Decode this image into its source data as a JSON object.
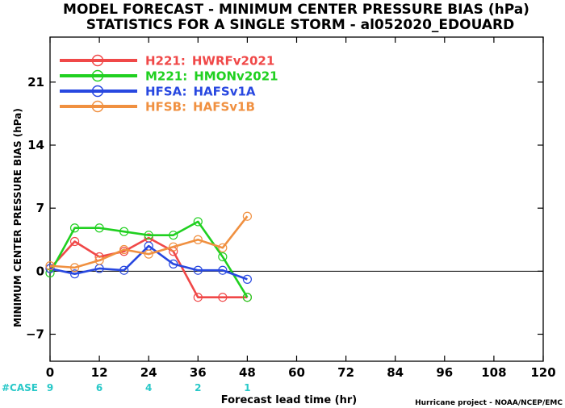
{
  "chart_data": {
    "type": "line",
    "title_lines": [
      "MODEL FORECAST - MINIMUM CENTER PRESSURE BIAS (hPa)",
      "STATISTICS FOR A SINGLE STORM - al052020_EDOUARD"
    ],
    "xlabel": "Forecast lead time (hr)",
    "ylabel": "MINIMUM CENTER PRESSURE BIAS (hPa)",
    "xlim": [
      0,
      120
    ],
    "ylim": [
      -10,
      26
    ],
    "xticks": [
      0,
      12,
      24,
      36,
      48,
      60,
      72,
      84,
      96,
      108,
      120
    ],
    "yticks": [
      -7,
      0,
      7,
      14,
      21
    ],
    "zero_line": true,
    "legend_position": "top-left",
    "case_label": "#CASE",
    "case_counts": [
      {
        "x": 0,
        "n": "9"
      },
      {
        "x": 12,
        "n": "6"
      },
      {
        "x": 24,
        "n": "4"
      },
      {
        "x": 36,
        "n": "2"
      },
      {
        "x": 48,
        "n": "1"
      }
    ],
    "credit": "Hurricane project - NOAA/NCEP/EMC",
    "series": [
      {
        "code": "H221:",
        "name": "HWRFv2021",
        "color": "#f04848",
        "x": [
          0,
          6,
          12,
          18,
          24,
          30,
          36,
          42,
          48
        ],
        "y": [
          0.3,
          3.3,
          1.6,
          2.2,
          3.7,
          2.2,
          -2.9,
          -2.9,
          -2.9
        ]
      },
      {
        "code": "M221:",
        "name": "HMONv2021",
        "color": "#20d020",
        "x": [
          0,
          6,
          12,
          18,
          24,
          30,
          36,
          42,
          48
        ],
        "y": [
          -0.2,
          4.8,
          4.8,
          4.4,
          4.0,
          4.0,
          5.5,
          1.6,
          -2.9
        ]
      },
      {
        "code": "HFSA:",
        "name": "HAFSv1A",
        "color": "#2848e0",
        "x": [
          0,
          6,
          12,
          18,
          24,
          30,
          36,
          42,
          48
        ],
        "y": [
          0.3,
          -0.3,
          0.3,
          0.1,
          2.8,
          0.8,
          0.1,
          0.1,
          -0.9
        ]
      },
      {
        "code": "HFSB:",
        "name": "HAFSv1B",
        "color": "#f09040",
        "x": [
          0,
          6,
          12,
          18,
          24,
          30,
          36,
          42,
          48
        ],
        "y": [
          0.6,
          0.4,
          1.2,
          2.4,
          1.9,
          2.7,
          3.5,
          2.6,
          6.1
        ]
      }
    ]
  }
}
